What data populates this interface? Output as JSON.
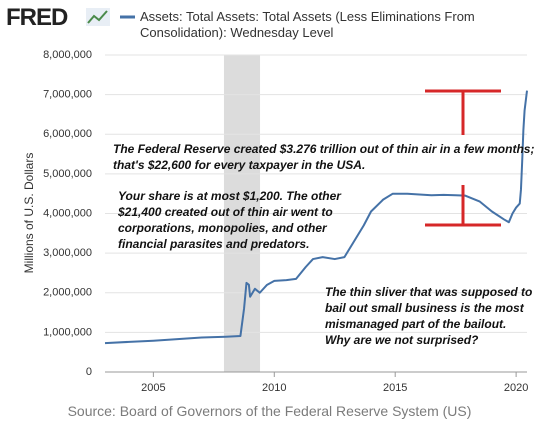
{
  "chart_data": {
    "type": "line",
    "logo": "FRED",
    "source": "Source: Board of Governors of the Federal Reserve System (US)",
    "ylabel": "Millions of U.S. Dollars",
    "xlim": [
      2003,
      2020.45
    ],
    "xticks": [
      2005,
      2010,
      2015,
      2020
    ],
    "ylim": [
      0,
      8000000
    ],
    "yticks": [
      {
        "value": 0,
        "label": "0"
      },
      {
        "value": 1000000,
        "label": "1,000,000"
      },
      {
        "value": 2000000,
        "label": "2,000,000"
      },
      {
        "value": 3000000,
        "label": "3,000,000"
      },
      {
        "value": 4000000,
        "label": "4,000,000"
      },
      {
        "value": 5000000,
        "label": "5,000,000"
      },
      {
        "value": 6000000,
        "label": "6,000,000"
      },
      {
        "value": 7000000,
        "label": "7,000,000"
      },
      {
        "value": 8000000,
        "label": "8,000,000"
      }
    ],
    "grid": true,
    "recession_shading": {
      "start": 2007.92,
      "end": 2009.41,
      "color": "#dcdcdc"
    },
    "series": [
      {
        "name": "Assets: Total Assets: Total Assets (Less Eliminations From Consolidation): Wednesday Level",
        "color": "#4572a7",
        "x": [
          2003.0,
          2004.0,
          2005.0,
          2006.0,
          2007.0,
          2008.0,
          2008.6,
          2008.75,
          2008.85,
          2008.95,
          2009.0,
          2009.2,
          2009.4,
          2009.7,
          2010.0,
          2010.5,
          2010.9,
          2011.3,
          2011.6,
          2012.0,
          2012.5,
          2012.9,
          2013.3,
          2013.7,
          2014.0,
          2014.5,
          2014.9,
          2015.5,
          2016.0,
          2016.5,
          2017.0,
          2017.5,
          2017.9,
          2018.5,
          2019.0,
          2019.5,
          2019.7,
          2019.85,
          2020.0,
          2020.15,
          2020.2,
          2020.25,
          2020.3,
          2020.35,
          2020.45
        ],
        "values": [
          730000,
          760000,
          790000,
          830000,
          870000,
          890000,
          910000,
          1600000,
          2250000,
          2200000,
          1900000,
          2100000,
          2000000,
          2200000,
          2300000,
          2320000,
          2350000,
          2650000,
          2850000,
          2900000,
          2850000,
          2900000,
          3300000,
          3700000,
          4050000,
          4350000,
          4500000,
          4500000,
          4480000,
          4460000,
          4470000,
          4460000,
          4450000,
          4300000,
          4050000,
          3850000,
          3780000,
          4000000,
          4150000,
          4250000,
          4600000,
          5300000,
          6100000,
          6600000,
          7100000
        ]
      }
    ],
    "annotations": [
      [
        "The Federal Reserve created $3.276 trillion out of thin air in a few months;",
        "that's $22,600 for every taxpayer in the USA."
      ],
      [
        "Your share is at most $1,200. The other",
        "$21,400 created out of thin air went to",
        "corporations, monopolies, and other",
        "financial parasites and predators."
      ],
      [
        "The thin sliver that was supposed to",
        "bail out small business is the most",
        "mismanaged part of the bailout.",
        "Why are we not surprised?"
      ]
    ]
  }
}
